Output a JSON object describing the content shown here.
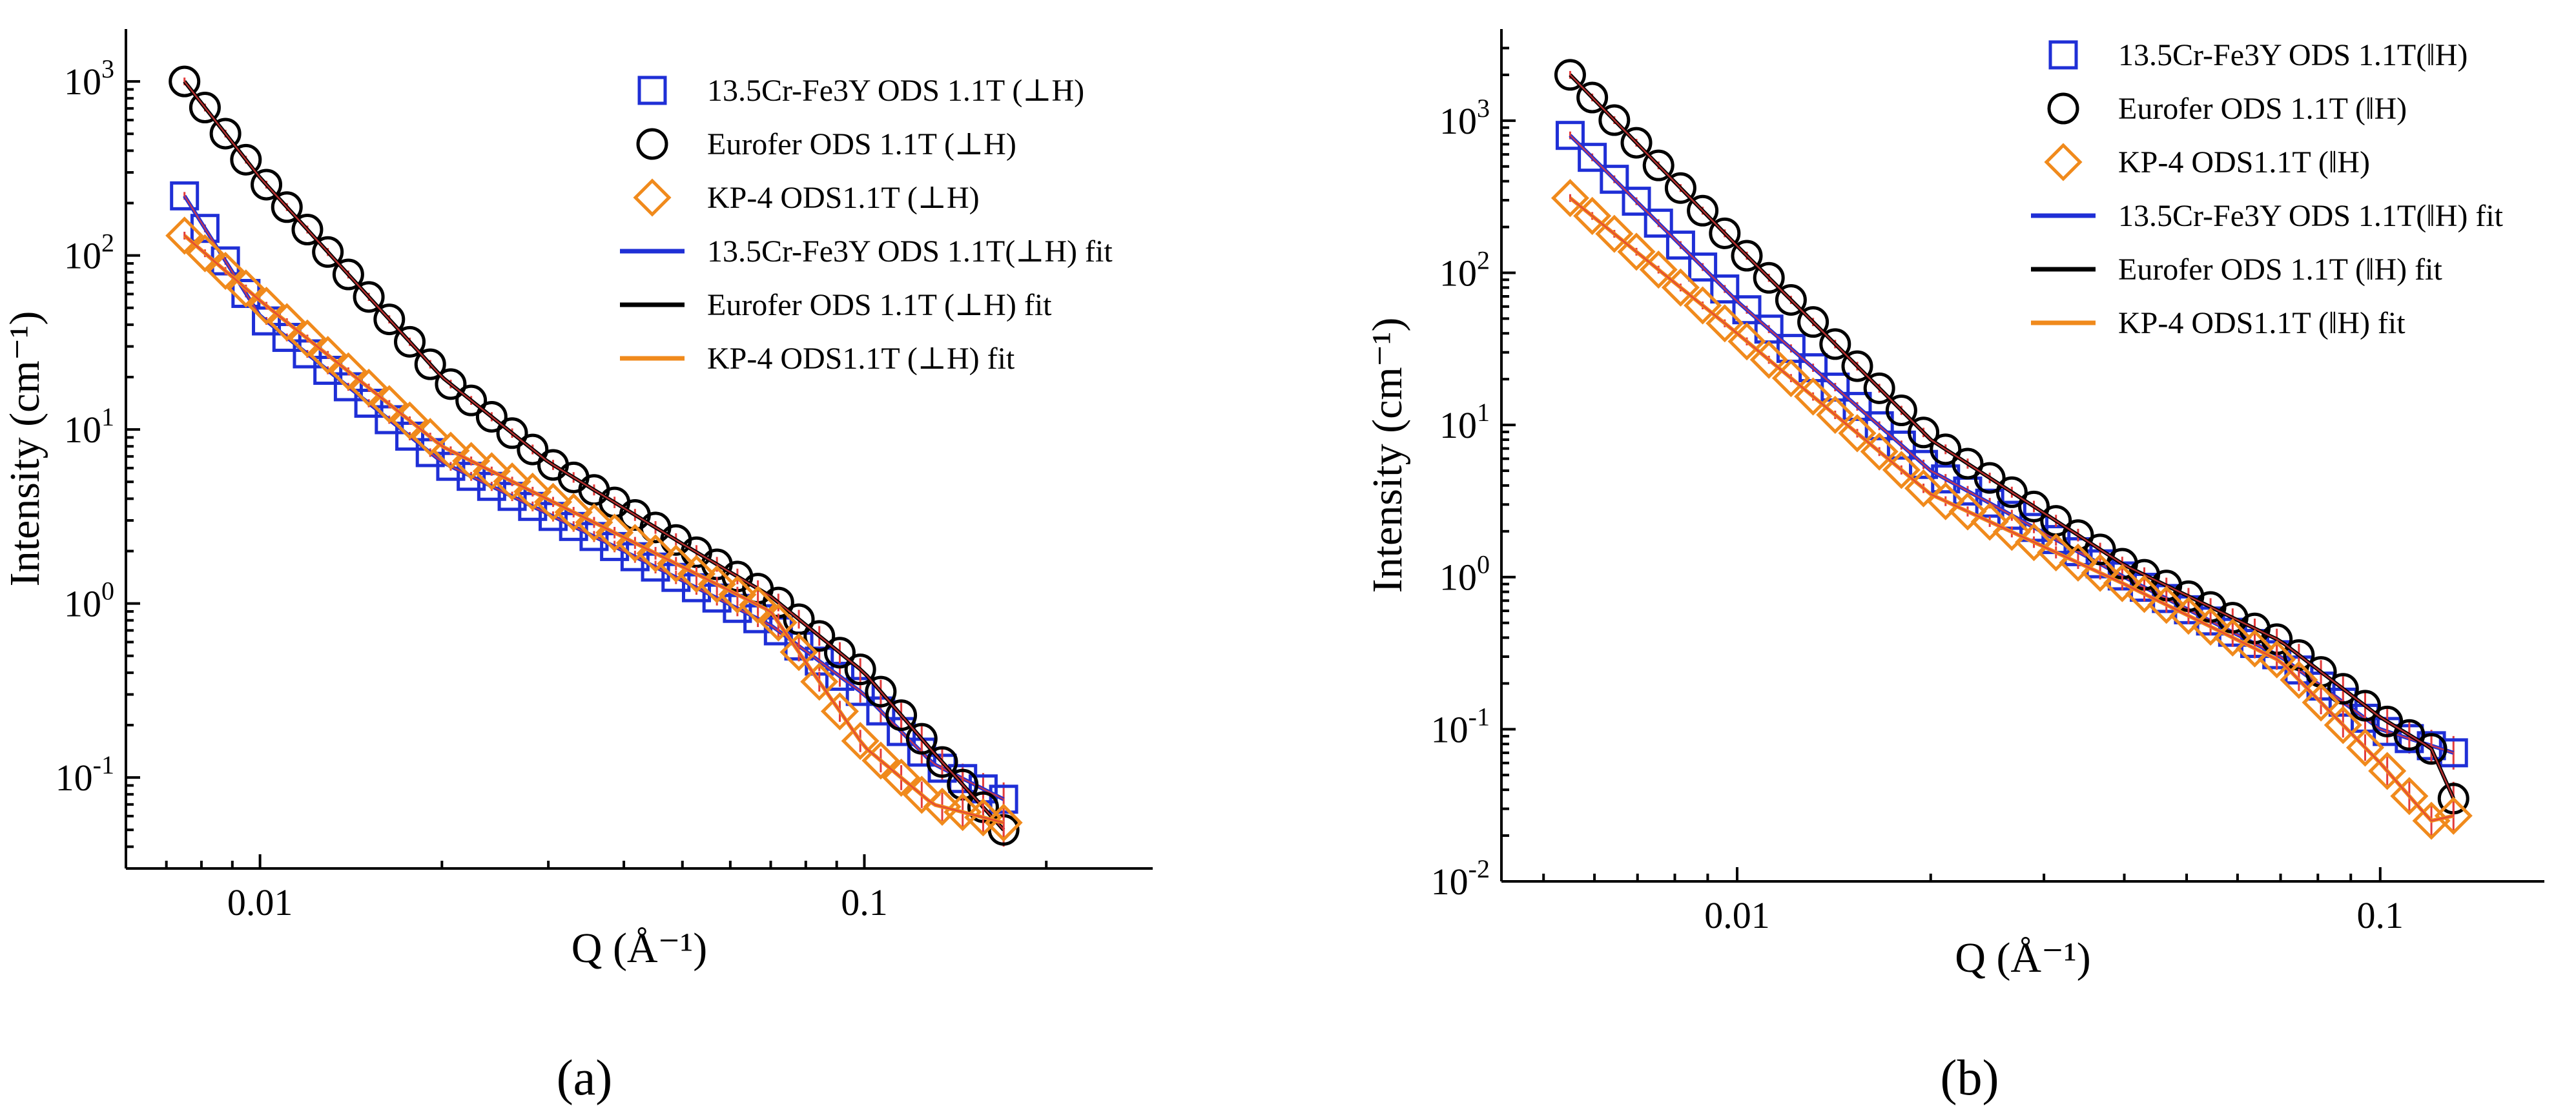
{
  "figure_labels": [
    "(a)",
    "(b)"
  ],
  "chart_data": [
    {
      "type": "scatter",
      "panel": "(a)",
      "xscale": "log",
      "yscale": "log",
      "xlabel": "Q (Å⁻¹)",
      "ylabel": "Intensity (cm⁻¹)",
      "xlim": [
        0.006,
        0.3
      ],
      "ylim": [
        0.03,
        2000
      ],
      "xticks": [
        {
          "value": 0.01,
          "label": "0.01"
        },
        {
          "value": 0.1,
          "label": "0.1"
        }
      ],
      "yticks": [
        {
          "value": 1000,
          "base": "10",
          "exp": "3"
        },
        {
          "value": 100,
          "base": "10",
          "exp": "2"
        },
        {
          "value": 10,
          "base": "10",
          "exp": "1"
        },
        {
          "value": 1,
          "base": "10",
          "exp": "0"
        },
        {
          "value": 0.1,
          "base": "10",
          "exp": "-1"
        }
      ],
      "legend_position": "top-right",
      "series": [
        {
          "name": "13.5Cr-Fe3Y ODS 1.1T (⊥H)",
          "marker": "square",
          "color": "#1f2fd6",
          "q": [
            0.0075,
            0.17
          ],
          "profile": [
            [
              0.0075,
              220
            ],
            [
              0.01,
              45
            ],
            [
              0.02,
              6.5
            ],
            [
              0.04,
              2.0
            ],
            [
              0.07,
              0.75
            ],
            [
              0.1,
              0.3
            ],
            [
              0.13,
              0.12
            ],
            [
              0.17,
              0.075
            ]
          ]
        },
        {
          "name": "Eurofer ODS 1.1T (⊥H)",
          "marker": "circle",
          "color": "#000000",
          "q": [
            0.0075,
            0.17
          ],
          "profile": [
            [
              0.0075,
              1000
            ],
            [
              0.01,
              280
            ],
            [
              0.02,
              20
            ],
            [
              0.03,
              6.5
            ],
            [
              0.05,
              2.2
            ],
            [
              0.07,
              1.1
            ],
            [
              0.1,
              0.4
            ],
            [
              0.13,
              0.14
            ],
            [
              0.17,
              0.05
            ]
          ]
        },
        {
          "name": "KP-4 ODS1.1T (⊥H)",
          "marker": "diamond",
          "color": "#f08a1c",
          "q": [
            0.0075,
            0.17
          ],
          "profile": [
            [
              0.0075,
              130
            ],
            [
              0.01,
              55
            ],
            [
              0.02,
              8
            ],
            [
              0.04,
              2.4
            ],
            [
              0.07,
              0.9
            ],
            [
              0.1,
              0.15
            ],
            [
              0.13,
              0.07
            ],
            [
              0.17,
              0.055
            ]
          ]
        },
        {
          "name": "13.5Cr-Fe3Y ODS 1.1T(⊥H) fit",
          "marker": "line",
          "color": "#1f2fd6",
          "fit_of": 0
        },
        {
          "name": "Eurofer ODS 1.1T (⊥H) fit",
          "marker": "line",
          "color": "#000000",
          "fit_of": 1
        },
        {
          "name": "KP-4 ODS1.1T (⊥H) fit",
          "marker": "line",
          "color": "#f08a1c",
          "fit_of": 2
        }
      ]
    },
    {
      "type": "scatter",
      "panel": "(b)",
      "xscale": "log",
      "yscale": "log",
      "xlabel": "Q (Å⁻¹)",
      "ylabel": "Intensity (cm⁻¹)",
      "xlim": [
        0.0043,
        0.18
      ],
      "ylim": [
        0.01,
        4000
      ],
      "xticks": [
        {
          "value": 0.01,
          "label": "0.01"
        },
        {
          "value": 0.1,
          "label": "0.1"
        }
      ],
      "yticks": [
        {
          "value": 1000,
          "base": "10",
          "exp": "3"
        },
        {
          "value": 100,
          "base": "10",
          "exp": "2"
        },
        {
          "value": 10,
          "base": "10",
          "exp": "1"
        },
        {
          "value": 1,
          "base": "10",
          "exp": "0"
        },
        {
          "value": 0.1,
          "base": "10",
          "exp": "-1"
        },
        {
          "value": 0.01,
          "base": "10",
          "exp": "-2"
        }
      ],
      "legend_position": "top-right",
      "series": [
        {
          "name": "13.5Cr-Fe3Y ODS 1.1T(ǁH)",
          "marker": "square",
          "color": "#1f2fd6",
          "q": [
            0.0055,
            0.13
          ],
          "profile": [
            [
              0.0055,
              800
            ],
            [
              0.01,
              65
            ],
            [
              0.02,
              5
            ],
            [
              0.04,
              1.0
            ],
            [
              0.07,
              0.3
            ],
            [
              0.1,
              0.1
            ],
            [
              0.13,
              0.07
            ]
          ]
        },
        {
          "name": "Eurofer ODS 1.1T (ǁH)",
          "marker": "circle",
          "color": "#000000",
          "q": [
            0.0055,
            0.13
          ],
          "profile": [
            [
              0.0055,
              2000
            ],
            [
              0.01,
              150
            ],
            [
              0.02,
              8
            ],
            [
              0.04,
              1.2
            ],
            [
              0.07,
              0.38
            ],
            [
              0.1,
              0.12
            ],
            [
              0.12,
              0.075
            ],
            [
              0.13,
              0.035
            ]
          ]
        },
        {
          "name": "KP-4 ODS1.1T (ǁH)",
          "marker": "diamond",
          "color": "#f08a1c",
          "q": [
            0.0055,
            0.13
          ],
          "profile": [
            [
              0.0055,
              310
            ],
            [
              0.01,
              40
            ],
            [
              0.02,
              3.5
            ],
            [
              0.04,
              0.9
            ],
            [
              0.07,
              0.28
            ],
            [
              0.1,
              0.06
            ],
            [
              0.12,
              0.025
            ],
            [
              0.13,
              0.027
            ]
          ]
        },
        {
          "name": "13.5Cr-Fe3Y ODS 1.1T(ǁH) fit",
          "marker": "line",
          "color": "#1f2fd6",
          "fit_of": 0
        },
        {
          "name": "Eurofer ODS 1.1T (ǁH) fit",
          "marker": "line",
          "color": "#000000",
          "fit_of": 1
        },
        {
          "name": "KP-4 ODS1.1T (ǁH) fit",
          "marker": "line",
          "color": "#f08a1c",
          "fit_of": 2
        }
      ]
    }
  ]
}
